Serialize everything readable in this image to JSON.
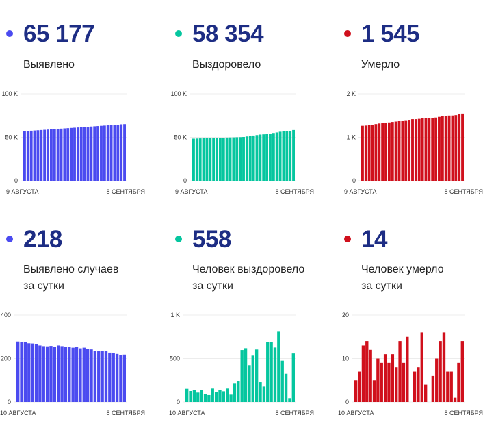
{
  "panels": [
    {
      "id": "detected-total",
      "value": "65 177",
      "label_lines": [
        "Выявлено"
      ],
      "color": "#4b4bf0"
    },
    {
      "id": "recovered-total",
      "value": "58 354",
      "label_lines": [
        "Выздоровело"
      ],
      "color": "#05c69f"
    },
    {
      "id": "deaths-total",
      "value": "1 545",
      "label_lines": [
        "Умерло"
      ],
      "color": "#d0101c"
    },
    {
      "id": "detected-daily",
      "value": "218",
      "label_lines": [
        "Выявлено случаев",
        "за сутки"
      ],
      "color": "#4b4bf0"
    },
    {
      "id": "recovered-daily",
      "value": "558",
      "label_lines": [
        "Человек выздоровело",
        "за сутки"
      ],
      "color": "#05c69f"
    },
    {
      "id": "deaths-daily",
      "value": "14",
      "label_lines": [
        "Человек умерло",
        "за сутки"
      ],
      "color": "#d0101c"
    }
  ],
  "chart_data": [
    {
      "type": "bar",
      "title": "Выявлено",
      "color": "#4b4bf0",
      "ylim": [
        0,
        100000
      ],
      "yticks": [
        0,
        50000,
        100000
      ],
      "ytick_labels": [
        "0",
        "50 K",
        "100 K"
      ],
      "x_start_label": "9 АВГУСТА",
      "x_end_label": "8 СЕНТЯБРЯ",
      "grid": true,
      "values": [
        57000,
        57270,
        57540,
        57810,
        58080,
        58350,
        58620,
        58890,
        59160,
        59430,
        59700,
        59970,
        60240,
        60510,
        60780,
        61050,
        61320,
        61590,
        61860,
        62130,
        62400,
        62670,
        62940,
        63210,
        63480,
        63750,
        64020,
        64290,
        64560,
        64959,
        65177
      ]
    },
    {
      "type": "bar",
      "title": "Выздоровело",
      "color": "#05c69f",
      "ylim": [
        0,
        100000
      ],
      "yticks": [
        0,
        50000,
        100000
      ],
      "ytick_labels": [
        "0",
        "50 K",
        "100 K"
      ],
      "x_start_label": "9 АВГУСТА",
      "x_end_label": "8 СЕНТЯБРЯ",
      "grid": true,
      "values": [
        48450,
        48600,
        48740,
        48880,
        49010,
        49100,
        49250,
        49350,
        49480,
        49580,
        49700,
        49810,
        49890,
        50050,
        50170,
        50380,
        50980,
        51600,
        52020,
        52550,
        53160,
        53390,
        53570,
        54260,
        54950,
        55570,
        56380,
        56860,
        57180,
        57230,
        58354
      ]
    },
    {
      "type": "bar",
      "title": "Умерло",
      "color": "#d0101c",
      "ylim": [
        0,
        2000
      ],
      "yticks": [
        0,
        1000,
        2000
      ],
      "ytick_labels": [
        "0",
        "1 K",
        "2 K"
      ],
      "x_start_label": "9 АВГУСТА",
      "x_end_label": "8 СЕНТЯБРЯ",
      "grid": true,
      "values": [
        1265,
        1270,
        1277,
        1290,
        1304,
        1318,
        1323,
        1333,
        1342,
        1353,
        1362,
        1370,
        1378,
        1392,
        1401,
        1416,
        1416,
        1423,
        1439,
        1443,
        1447,
        1447,
        1453,
        1469,
        1485,
        1492,
        1499,
        1500,
        1509,
        1531,
        1545
      ]
    },
    {
      "type": "bar",
      "title": "Выявлено случаев за сутки",
      "color": "#4b4bf0",
      "ylim": [
        0,
        400
      ],
      "yticks": [
        0,
        200,
        400
      ],
      "ytick_labels": [
        "0",
        "200",
        "400"
      ],
      "x_start_label": "10 АВГУСТА",
      "x_end_label": "8 СЕНТЯБРЯ",
      "grid": true,
      "values": [
        278,
        276,
        275,
        270,
        269,
        265,
        260,
        257,
        256,
        258,
        255,
        260,
        257,
        255,
        252,
        250,
        253,
        247,
        250,
        244,
        242,
        235,
        233,
        236,
        233,
        227,
        225,
        221,
        216,
        218
      ]
    },
    {
      "type": "bar",
      "title": "Человек выздоровело за сутки",
      "color": "#05c69f",
      "ylim": [
        0,
        1000
      ],
      "yticks": [
        0,
        500,
        1000
      ],
      "ytick_labels": [
        "0",
        "500",
        "1 K"
      ],
      "x_start_label": "10 АВГУСТА",
      "x_end_label": "8 СЕНТЯБРЯ",
      "grid": true,
      "values": [
        152,
        126,
        139,
        108,
        134,
        87,
        79,
        155,
        113,
        139,
        123,
        155,
        84,
        210,
        236,
        598,
        619,
        423,
        533,
        604,
        228,
        178,
        688,
        688,
        627,
        808,
        475,
        325,
        45,
        558
      ]
    },
    {
      "type": "bar",
      "title": "Человек умерло за сутки",
      "color": "#d0101c",
      "ylim": [
        0,
        20
      ],
      "yticks": [
        0,
        10,
        20
      ],
      "ytick_labels": [
        "0",
        "10",
        "20"
      ],
      "x_start_label": "10 АВГУСТА",
      "x_end_label": "8 СЕНТЯБРЯ",
      "grid": true,
      "values": [
        5,
        7,
        13,
        14,
        12,
        5,
        10,
        9,
        11,
        9,
        11,
        8,
        14,
        9,
        15,
        0,
        7,
        8,
        16,
        4,
        0,
        6,
        10,
        14,
        16,
        7,
        7,
        1,
        9,
        14
      ]
    }
  ]
}
